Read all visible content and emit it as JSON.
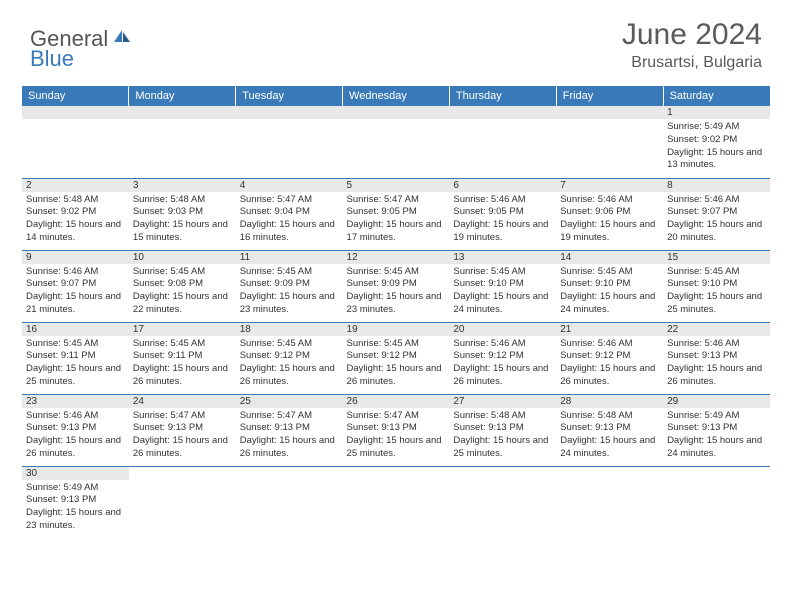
{
  "logo": {
    "general": "General",
    "blue": "Blue"
  },
  "title": "June 2024",
  "location": "Brusartsi, Bulgaria",
  "colors": {
    "header_bg": "#3a7ab8",
    "header_text": "#ffffff",
    "day_strip_bg": "#e8e8e8",
    "text": "#333333",
    "border": "#3a7ab8",
    "title_text": "#5a5a5a"
  },
  "fonts": {
    "title_size": 30,
    "location_size": 16,
    "weekday_size": 11,
    "daynum_size": 10,
    "body_size": 9.5
  },
  "weekdays": [
    "Sunday",
    "Monday",
    "Tuesday",
    "Wednesday",
    "Thursday",
    "Friday",
    "Saturday"
  ],
  "weeks": [
    [
      null,
      null,
      null,
      null,
      null,
      null,
      {
        "d": "1",
        "sr": "5:49 AM",
        "ss": "9:02 PM",
        "dl": "15 hours and 13 minutes."
      }
    ],
    [
      {
        "d": "2",
        "sr": "5:48 AM",
        "ss": "9:02 PM",
        "dl": "15 hours and 14 minutes."
      },
      {
        "d": "3",
        "sr": "5:48 AM",
        "ss": "9:03 PM",
        "dl": "15 hours and 15 minutes."
      },
      {
        "d": "4",
        "sr": "5:47 AM",
        "ss": "9:04 PM",
        "dl": "15 hours and 16 minutes."
      },
      {
        "d": "5",
        "sr": "5:47 AM",
        "ss": "9:05 PM",
        "dl": "15 hours and 17 minutes."
      },
      {
        "d": "6",
        "sr": "5:46 AM",
        "ss": "9:05 PM",
        "dl": "15 hours and 19 minutes."
      },
      {
        "d": "7",
        "sr": "5:46 AM",
        "ss": "9:06 PM",
        "dl": "15 hours and 19 minutes."
      },
      {
        "d": "8",
        "sr": "5:46 AM",
        "ss": "9:07 PM",
        "dl": "15 hours and 20 minutes."
      }
    ],
    [
      {
        "d": "9",
        "sr": "5:46 AM",
        "ss": "9:07 PM",
        "dl": "15 hours and 21 minutes."
      },
      {
        "d": "10",
        "sr": "5:45 AM",
        "ss": "9:08 PM",
        "dl": "15 hours and 22 minutes."
      },
      {
        "d": "11",
        "sr": "5:45 AM",
        "ss": "9:09 PM",
        "dl": "15 hours and 23 minutes."
      },
      {
        "d": "12",
        "sr": "5:45 AM",
        "ss": "9:09 PM",
        "dl": "15 hours and 23 minutes."
      },
      {
        "d": "13",
        "sr": "5:45 AM",
        "ss": "9:10 PM",
        "dl": "15 hours and 24 minutes."
      },
      {
        "d": "14",
        "sr": "5:45 AM",
        "ss": "9:10 PM",
        "dl": "15 hours and 24 minutes."
      },
      {
        "d": "15",
        "sr": "5:45 AM",
        "ss": "9:10 PM",
        "dl": "15 hours and 25 minutes."
      }
    ],
    [
      {
        "d": "16",
        "sr": "5:45 AM",
        "ss": "9:11 PM",
        "dl": "15 hours and 25 minutes."
      },
      {
        "d": "17",
        "sr": "5:45 AM",
        "ss": "9:11 PM",
        "dl": "15 hours and 26 minutes."
      },
      {
        "d": "18",
        "sr": "5:45 AM",
        "ss": "9:12 PM",
        "dl": "15 hours and 26 minutes."
      },
      {
        "d": "19",
        "sr": "5:45 AM",
        "ss": "9:12 PM",
        "dl": "15 hours and 26 minutes."
      },
      {
        "d": "20",
        "sr": "5:46 AM",
        "ss": "9:12 PM",
        "dl": "15 hours and 26 minutes."
      },
      {
        "d": "21",
        "sr": "5:46 AM",
        "ss": "9:12 PM",
        "dl": "15 hours and 26 minutes."
      },
      {
        "d": "22",
        "sr": "5:46 AM",
        "ss": "9:13 PM",
        "dl": "15 hours and 26 minutes."
      }
    ],
    [
      {
        "d": "23",
        "sr": "5:46 AM",
        "ss": "9:13 PM",
        "dl": "15 hours and 26 minutes."
      },
      {
        "d": "24",
        "sr": "5:47 AM",
        "ss": "9:13 PM",
        "dl": "15 hours and 26 minutes."
      },
      {
        "d": "25",
        "sr": "5:47 AM",
        "ss": "9:13 PM",
        "dl": "15 hours and 26 minutes."
      },
      {
        "d": "26",
        "sr": "5:47 AM",
        "ss": "9:13 PM",
        "dl": "15 hours and 25 minutes."
      },
      {
        "d": "27",
        "sr": "5:48 AM",
        "ss": "9:13 PM",
        "dl": "15 hours and 25 minutes."
      },
      {
        "d": "28",
        "sr": "5:48 AM",
        "ss": "9:13 PM",
        "dl": "15 hours and 24 minutes."
      },
      {
        "d": "29",
        "sr": "5:49 AM",
        "ss": "9:13 PM",
        "dl": "15 hours and 24 minutes."
      }
    ],
    [
      {
        "d": "30",
        "sr": "5:49 AM",
        "ss": "9:13 PM",
        "dl": "15 hours and 23 minutes."
      },
      null,
      null,
      null,
      null,
      null,
      null
    ]
  ],
  "labels": {
    "sunrise": "Sunrise:",
    "sunset": "Sunset:",
    "daylight": "Daylight:"
  }
}
